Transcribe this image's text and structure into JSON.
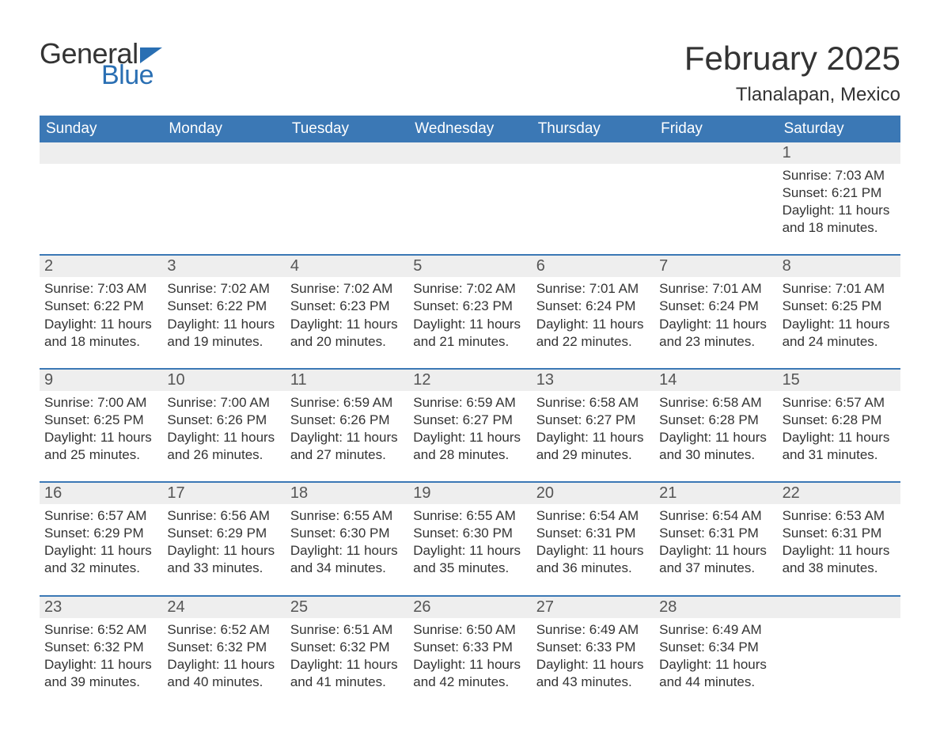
{
  "logo": {
    "general": "General",
    "blue": "Blue"
  },
  "header": {
    "month_title": "February 2025",
    "location": "Tlanalapan, Mexico"
  },
  "colors": {
    "brand_blue": "#2a6fb3",
    "header_blue": "#3b78b5",
    "row_gray": "#eeeeee",
    "text": "#333333",
    "background": "#ffffff"
  },
  "weekdays": [
    "Sunday",
    "Monday",
    "Tuesday",
    "Wednesday",
    "Thursday",
    "Friday",
    "Saturday"
  ],
  "weeks": [
    [
      null,
      null,
      null,
      null,
      null,
      null,
      {
        "n": "1",
        "sunrise": "Sunrise: 7:03 AM",
        "sunset": "Sunset: 6:21 PM",
        "day1": "Daylight: 11 hours",
        "day2": "and 18 minutes."
      }
    ],
    [
      {
        "n": "2",
        "sunrise": "Sunrise: 7:03 AM",
        "sunset": "Sunset: 6:22 PM",
        "day1": "Daylight: 11 hours",
        "day2": "and 18 minutes."
      },
      {
        "n": "3",
        "sunrise": "Sunrise: 7:02 AM",
        "sunset": "Sunset: 6:22 PM",
        "day1": "Daylight: 11 hours",
        "day2": "and 19 minutes."
      },
      {
        "n": "4",
        "sunrise": "Sunrise: 7:02 AM",
        "sunset": "Sunset: 6:23 PM",
        "day1": "Daylight: 11 hours",
        "day2": "and 20 minutes."
      },
      {
        "n": "5",
        "sunrise": "Sunrise: 7:02 AM",
        "sunset": "Sunset: 6:23 PM",
        "day1": "Daylight: 11 hours",
        "day2": "and 21 minutes."
      },
      {
        "n": "6",
        "sunrise": "Sunrise: 7:01 AM",
        "sunset": "Sunset: 6:24 PM",
        "day1": "Daylight: 11 hours",
        "day2": "and 22 minutes."
      },
      {
        "n": "7",
        "sunrise": "Sunrise: 7:01 AM",
        "sunset": "Sunset: 6:24 PM",
        "day1": "Daylight: 11 hours",
        "day2": "and 23 minutes."
      },
      {
        "n": "8",
        "sunrise": "Sunrise: 7:01 AM",
        "sunset": "Sunset: 6:25 PM",
        "day1": "Daylight: 11 hours",
        "day2": "and 24 minutes."
      }
    ],
    [
      {
        "n": "9",
        "sunrise": "Sunrise: 7:00 AM",
        "sunset": "Sunset: 6:25 PM",
        "day1": "Daylight: 11 hours",
        "day2": "and 25 minutes."
      },
      {
        "n": "10",
        "sunrise": "Sunrise: 7:00 AM",
        "sunset": "Sunset: 6:26 PM",
        "day1": "Daylight: 11 hours",
        "day2": "and 26 minutes."
      },
      {
        "n": "11",
        "sunrise": "Sunrise: 6:59 AM",
        "sunset": "Sunset: 6:26 PM",
        "day1": "Daylight: 11 hours",
        "day2": "and 27 minutes."
      },
      {
        "n": "12",
        "sunrise": "Sunrise: 6:59 AM",
        "sunset": "Sunset: 6:27 PM",
        "day1": "Daylight: 11 hours",
        "day2": "and 28 minutes."
      },
      {
        "n": "13",
        "sunrise": "Sunrise: 6:58 AM",
        "sunset": "Sunset: 6:27 PM",
        "day1": "Daylight: 11 hours",
        "day2": "and 29 minutes."
      },
      {
        "n": "14",
        "sunrise": "Sunrise: 6:58 AM",
        "sunset": "Sunset: 6:28 PM",
        "day1": "Daylight: 11 hours",
        "day2": "and 30 minutes."
      },
      {
        "n": "15",
        "sunrise": "Sunrise: 6:57 AM",
        "sunset": "Sunset: 6:28 PM",
        "day1": "Daylight: 11 hours",
        "day2": "and 31 minutes."
      }
    ],
    [
      {
        "n": "16",
        "sunrise": "Sunrise: 6:57 AM",
        "sunset": "Sunset: 6:29 PM",
        "day1": "Daylight: 11 hours",
        "day2": "and 32 minutes."
      },
      {
        "n": "17",
        "sunrise": "Sunrise: 6:56 AM",
        "sunset": "Sunset: 6:29 PM",
        "day1": "Daylight: 11 hours",
        "day2": "and 33 minutes."
      },
      {
        "n": "18",
        "sunrise": "Sunrise: 6:55 AM",
        "sunset": "Sunset: 6:30 PM",
        "day1": "Daylight: 11 hours",
        "day2": "and 34 minutes."
      },
      {
        "n": "19",
        "sunrise": "Sunrise: 6:55 AM",
        "sunset": "Sunset: 6:30 PM",
        "day1": "Daylight: 11 hours",
        "day2": "and 35 minutes."
      },
      {
        "n": "20",
        "sunrise": "Sunrise: 6:54 AM",
        "sunset": "Sunset: 6:31 PM",
        "day1": "Daylight: 11 hours",
        "day2": "and 36 minutes."
      },
      {
        "n": "21",
        "sunrise": "Sunrise: 6:54 AM",
        "sunset": "Sunset: 6:31 PM",
        "day1": "Daylight: 11 hours",
        "day2": "and 37 minutes."
      },
      {
        "n": "22",
        "sunrise": "Sunrise: 6:53 AM",
        "sunset": "Sunset: 6:31 PM",
        "day1": "Daylight: 11 hours",
        "day2": "and 38 minutes."
      }
    ],
    [
      {
        "n": "23",
        "sunrise": "Sunrise: 6:52 AM",
        "sunset": "Sunset: 6:32 PM",
        "day1": "Daylight: 11 hours",
        "day2": "and 39 minutes."
      },
      {
        "n": "24",
        "sunrise": "Sunrise: 6:52 AM",
        "sunset": "Sunset: 6:32 PM",
        "day1": "Daylight: 11 hours",
        "day2": "and 40 minutes."
      },
      {
        "n": "25",
        "sunrise": "Sunrise: 6:51 AM",
        "sunset": "Sunset: 6:32 PM",
        "day1": "Daylight: 11 hours",
        "day2": "and 41 minutes."
      },
      {
        "n": "26",
        "sunrise": "Sunrise: 6:50 AM",
        "sunset": "Sunset: 6:33 PM",
        "day1": "Daylight: 11 hours",
        "day2": "and 42 minutes."
      },
      {
        "n": "27",
        "sunrise": "Sunrise: 6:49 AM",
        "sunset": "Sunset: 6:33 PM",
        "day1": "Daylight: 11 hours",
        "day2": "and 43 minutes."
      },
      {
        "n": "28",
        "sunrise": "Sunrise: 6:49 AM",
        "sunset": "Sunset: 6:34 PM",
        "day1": "Daylight: 11 hours",
        "day2": "and 44 minutes."
      },
      null
    ]
  ]
}
